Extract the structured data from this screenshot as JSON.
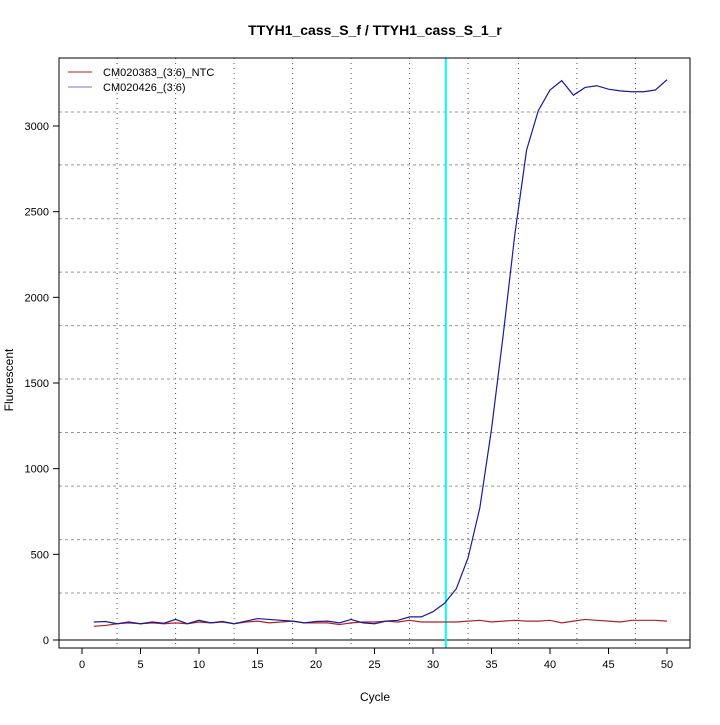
{
  "chart_data": {
    "type": "line",
    "title": "TTYH1_cass_S_f / TTYH1_cass_S_1_r",
    "xlabel": "Cycle",
    "ylabel": "Fluorescent",
    "xlim": [
      -2,
      52
    ],
    "ylim": [
      -50,
      3370
    ],
    "xticks": [
      0,
      5,
      10,
      15,
      20,
      25,
      30,
      35,
      40,
      45,
      50
    ],
    "yticks": [
      0,
      500,
      1000,
      1500,
      2000,
      2500,
      3000
    ],
    "grid": true,
    "grid_x": [
      3,
      8,
      13,
      18,
      23,
      28,
      33,
      37.3,
      42.3,
      47.3
    ],
    "grid_y": [
      274,
      586,
      898,
      1211,
      1523,
      1835,
      2147,
      2459,
      2773,
      3082
    ],
    "threshold_cycle": 31.1,
    "threshold_color": "#00ffff",
    "baseline": 0,
    "legend_position": "top-left",
    "x": [
      1,
      2,
      3,
      4,
      5,
      6,
      7,
      8,
      9,
      10,
      11,
      12,
      13,
      14,
      15,
      16,
      17,
      18,
      19,
      20,
      21,
      22,
      23,
      24,
      25,
      26,
      27,
      28,
      29,
      30,
      31,
      32,
      33,
      34,
      35,
      36,
      37,
      38,
      39,
      40,
      41,
      42,
      43,
      44,
      45,
      46,
      47,
      48,
      49,
      50
    ],
    "series": [
      {
        "name": "CM020383_(3:6)_NTC",
        "color": "#b22222",
        "values": [
          80,
          85,
          95,
          100,
          95,
          100,
          95,
          100,
          95,
          105,
          100,
          105,
          95,
          105,
          110,
          100,
          105,
          110,
          100,
          100,
          100,
          90,
          100,
          105,
          105,
          110,
          105,
          115,
          105,
          105,
          105,
          105,
          110,
          115,
          105,
          110,
          115,
          110,
          110,
          115,
          100,
          110,
          120,
          115,
          110,
          105,
          115,
          115,
          115,
          110
        ]
      },
      {
        "name": "CM020426_(3:6)",
        "color": "#1a1a9c",
        "values": [
          105,
          108,
          95,
          105,
          95,
          105,
          98,
          120,
          95,
          115,
          100,
          108,
          95,
          110,
          125,
          120,
          115,
          110,
          100,
          108,
          110,
          100,
          120,
          100,
          95,
          110,
          115,
          135,
          135,
          165,
          215,
          300,
          480,
          770,
          1230,
          1780,
          2370,
          2860,
          3090,
          3210,
          3265,
          3180,
          3225,
          3235,
          3215,
          3205,
          3200,
          3200,
          3210,
          3270
        ]
      }
    ]
  }
}
